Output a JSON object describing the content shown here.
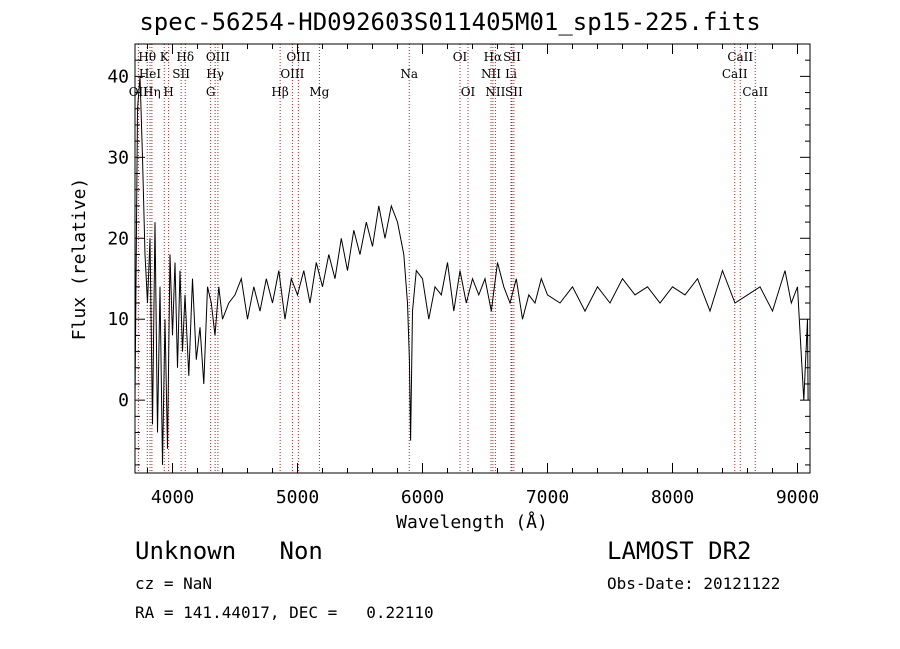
{
  "chart_data": {
    "type": "line",
    "title": "spec-56254-HD092603S011405M01_sp15-225.fits",
    "xlabel": "Wavelength (Å)",
    "ylabel": "Flux (relative)",
    "xlim": [
      3700,
      9100
    ],
    "ylim": [
      -9,
      44
    ],
    "xticks": [
      4000,
      5000,
      6000,
      7000,
      8000,
      9000
    ],
    "yticks": [
      0,
      10,
      20,
      30,
      40
    ],
    "series": [
      {
        "x": [
          3700,
          3720,
          3740,
          3760,
          3780,
          3800,
          3820,
          3840,
          3860,
          3880,
          3900,
          3920,
          3940,
          3960,
          3980,
          4000,
          4020,
          4040,
          4060,
          4080,
          4100,
          4130,
          4160,
          4190,
          4220,
          4250,
          4280,
          4310,
          4340,
          4370,
          4400,
          4450,
          4500,
          4550,
          4600,
          4650,
          4700,
          4750,
          4800,
          4850,
          4900,
          4950,
          5000,
          5050,
          5100,
          5150,
          5200,
          5250,
          5300,
          5350,
          5400,
          5450,
          5500,
          5550,
          5600,
          5650,
          5700,
          5750,
          5800,
          5850,
          5880,
          5895,
          5905,
          5920,
          5950,
          6000,
          6050,
          6100,
          6150,
          6200,
          6250,
          6300,
          6350,
          6400,
          6450,
          6500,
          6550,
          6600,
          6650,
          6700,
          6750,
          6800,
          6850,
          6900,
          6950,
          7000,
          7100,
          7200,
          7300,
          7400,
          7500,
          7600,
          7700,
          7800,
          7900,
          8000,
          8100,
          8200,
          8300,
          8400,
          8500,
          8600,
          8700,
          8800,
          8900,
          8950,
          9000,
          9050,
          9080,
          9085
        ],
        "y": [
          0,
          36,
          40,
          30,
          18,
          12,
          20,
          -3,
          22,
          -4,
          14,
          -8,
          10,
          -6,
          18,
          8,
          17,
          4,
          16,
          6,
          13,
          3,
          15,
          5,
          9,
          2,
          14,
          12,
          8,
          14,
          10,
          12,
          13,
          15,
          10,
          14,
          11,
          15,
          12,
          16,
          10,
          15,
          13,
          16,
          12,
          17,
          14,
          18,
          15,
          20,
          16,
          21,
          18,
          22,
          19,
          24,
          20,
          24,
          22,
          18,
          12,
          5,
          -5,
          11,
          16,
          15,
          10,
          14,
          13,
          17,
          11,
          16,
          12,
          15,
          13,
          15,
          11,
          17,
          14,
          12,
          15,
          10,
          13,
          12,
          15,
          13,
          12,
          14,
          11,
          14,
          12,
          15,
          13,
          14,
          12,
          14,
          13,
          15,
          11,
          16,
          12,
          13,
          14,
          11,
          16,
          12,
          14,
          0,
          10,
          0
        ]
      }
    ],
    "annotations": [
      {
        "label": "OII",
        "wavelength": 3727,
        "row": 3
      },
      {
        "label": "Hθ",
        "wavelength": 3798,
        "row": 1
      },
      {
        "label": "HeI",
        "wavelength": 3820,
        "row": 2
      },
      {
        "label": "Hη",
        "wavelength": 3835,
        "row": 3
      },
      {
        "label": "K",
        "wavelength": 3934,
        "row": 1
      },
      {
        "label": "SII",
        "wavelength": 4069,
        "row": 2
      },
      {
        "label": "H",
        "wavelength": 3969,
        "row": 3
      },
      {
        "label": "Hδ",
        "wavelength": 4102,
        "row": 1
      },
      {
        "label": "OIII",
        "wavelength": 4363,
        "row": 1
      },
      {
        "label": "Hγ",
        "wavelength": 4341,
        "row": 2
      },
      {
        "label": "G",
        "wavelength": 4305,
        "row": 3
      },
      {
        "label": "Hβ",
        "wavelength": 4861,
        "row": 3
      },
      {
        "label": "OIII",
        "wavelength": 5007,
        "row": 1
      },
      {
        "label": "OIII",
        "wavelength": 4959,
        "row": 2
      },
      {
        "label": "Mg",
        "wavelength": 5175,
        "row": 3
      },
      {
        "label": "Na",
        "wavelength": 5894,
        "row": 2
      },
      {
        "label": "OI",
        "wavelength": 6300,
        "row": 1
      },
      {
        "label": "OI",
        "wavelength": 6364,
        "row": 3
      },
      {
        "label": "Hα",
        "wavelength": 6563,
        "row": 1
      },
      {
        "label": "SII",
        "wavelength": 6716,
        "row": 1
      },
      {
        "label": "NII",
        "wavelength": 6548,
        "row": 2
      },
      {
        "label": "Li",
        "wavelength": 6708,
        "row": 2
      },
      {
        "label": "NII",
        "wavelength": 6583,
        "row": 3
      },
      {
        "label": "SII",
        "wavelength": 6731,
        "row": 3
      },
      {
        "label": "CaII",
        "wavelength": 8542,
        "row": 1
      },
      {
        "label": "CaII",
        "wavelength": 8498,
        "row": 2
      },
      {
        "label": "CaII",
        "wavelength": 8662,
        "row": 3
      }
    ]
  },
  "info": {
    "class_line": "Unknown   Non",
    "cz_line": "cz = NaN",
    "coord_line": "RA = 141.44017, DEC =   0.22110",
    "survey": "LAMOST DR2",
    "obs_date": "Obs-Date: 20121122"
  },
  "colors": {
    "spectrum": "#000000",
    "marker_lines": "#b22222"
  }
}
